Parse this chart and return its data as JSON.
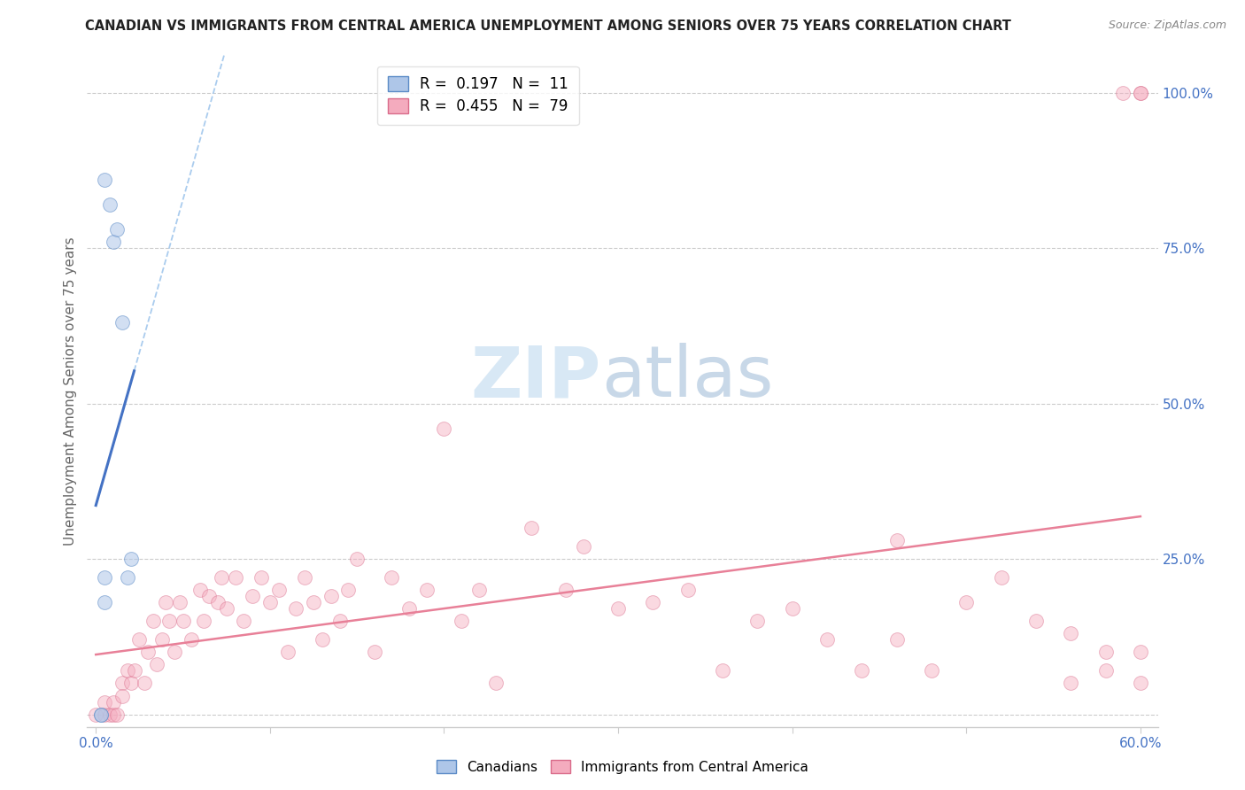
{
  "title": "CANADIAN VS IMMIGRANTS FROM CENTRAL AMERICA UNEMPLOYMENT AMONG SENIORS OVER 75 YEARS CORRELATION CHART",
  "source": "Source: ZipAtlas.com",
  "ylabel": "Unemployment Among Seniors over 75 years",
  "xlim": [
    -0.005,
    0.61
  ],
  "ylim": [
    -0.02,
    1.06
  ],
  "xticks": [
    0.0,
    0.1,
    0.2,
    0.3,
    0.4,
    0.5,
    0.6
  ],
  "xticklabels": [
    "0.0%",
    "",
    "",
    "",
    "",
    "",
    "60.0%"
  ],
  "yticks": [
    0.0,
    0.25,
    0.5,
    0.75,
    1.0
  ],
  "yticklabels": [
    "",
    "25.0%",
    "50.0%",
    "75.0%",
    "100.0%"
  ],
  "tick_color": "#4472C4",
  "canadians_color": "#AEC6E8",
  "immigrants_color": "#F4ABBE",
  "canadians_edge_color": "#5A8AC6",
  "immigrants_edge_color": "#D96B8A",
  "trendline_canadian_color": "#4472C4",
  "trendline_immigrant_color": "#E88098",
  "dashed_color": "#AACCEE",
  "legend_r_canadian": "R =  0.197   N =  11",
  "legend_r_immigrant": "R =  0.455   N =  79",
  "watermark_zip": "ZIP",
  "watermark_atlas": "atlas",
  "watermark_color": "#D8E8F5",
  "background_color": "#FFFFFF",
  "canadians_x": [
    0.005,
    0.008,
    0.01,
    0.012,
    0.015,
    0.018,
    0.02,
    0.005,
    0.005,
    0.003,
    0.003
  ],
  "canadians_y": [
    0.86,
    0.82,
    0.76,
    0.78,
    0.63,
    0.22,
    0.25,
    0.22,
    0.18,
    0.0,
    0.0
  ],
  "immigrants_x": [
    0.0,
    0.005,
    0.005,
    0.008,
    0.01,
    0.01,
    0.012,
    0.015,
    0.015,
    0.018,
    0.02,
    0.022,
    0.025,
    0.028,
    0.03,
    0.033,
    0.035,
    0.038,
    0.04,
    0.042,
    0.045,
    0.048,
    0.05,
    0.055,
    0.06,
    0.062,
    0.065,
    0.07,
    0.072,
    0.075,
    0.08,
    0.085,
    0.09,
    0.095,
    0.1,
    0.105,
    0.11,
    0.115,
    0.12,
    0.125,
    0.13,
    0.135,
    0.14,
    0.145,
    0.15,
    0.16,
    0.17,
    0.18,
    0.19,
    0.2,
    0.21,
    0.22,
    0.23,
    0.25,
    0.27,
    0.28,
    0.3,
    0.32,
    0.34,
    0.36,
    0.38,
    0.4,
    0.42,
    0.44,
    0.46,
    0.5,
    0.52,
    0.54,
    0.56,
    0.58,
    0.59,
    0.6,
    0.6,
    0.6,
    0.6,
    0.58,
    0.56,
    0.48,
    0.46
  ],
  "immigrants_y": [
    0.0,
    0.0,
    0.02,
    0.0,
    0.0,
    0.02,
    0.0,
    0.05,
    0.03,
    0.07,
    0.05,
    0.07,
    0.12,
    0.05,
    0.1,
    0.15,
    0.08,
    0.12,
    0.18,
    0.15,
    0.1,
    0.18,
    0.15,
    0.12,
    0.2,
    0.15,
    0.19,
    0.18,
    0.22,
    0.17,
    0.22,
    0.15,
    0.19,
    0.22,
    0.18,
    0.2,
    0.1,
    0.17,
    0.22,
    0.18,
    0.12,
    0.19,
    0.15,
    0.2,
    0.25,
    0.1,
    0.22,
    0.17,
    0.2,
    0.46,
    0.15,
    0.2,
    0.05,
    0.3,
    0.2,
    0.27,
    0.17,
    0.18,
    0.2,
    0.07,
    0.15,
    0.17,
    0.12,
    0.07,
    0.28,
    0.18,
    0.22,
    0.15,
    0.13,
    0.07,
    1.0,
    1.0,
    1.0,
    0.05,
    0.1,
    0.1,
    0.05,
    0.07,
    0.12
  ],
  "marker_size": 130,
  "alpha_can": 0.55,
  "alpha_imm": 0.45,
  "figsize": [
    14.06,
    8.92
  ],
  "dpi": 100
}
